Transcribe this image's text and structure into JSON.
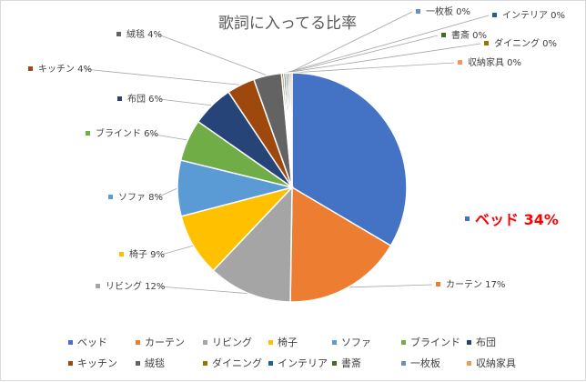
{
  "chart_data": {
    "type": "pie",
    "title": "歌詞に入ってる比率",
    "legend_position": "bottom",
    "slices": [
      {
        "name": "ベッド",
        "label": "ベッド 34%",
        "value": 34,
        "color": "#4472c4"
      },
      {
        "name": "カーテン",
        "label": "カーテン 17%",
        "value": 17,
        "color": "#ed7d31"
      },
      {
        "name": "リビング",
        "label": "リビング 12%",
        "value": 12,
        "color": "#a5a5a5"
      },
      {
        "name": "椅子",
        "label": "椅子 9%",
        "value": 9,
        "color": "#ffc000"
      },
      {
        "name": "ソファ",
        "label": "ソファ 8%",
        "value": 8,
        "color": "#5b9bd5"
      },
      {
        "name": "ブラインド",
        "label": "ブラインド 6%",
        "value": 6,
        "color": "#70ad47"
      },
      {
        "name": "布団",
        "label": "布団 6%",
        "value": 6,
        "color": "#264478"
      },
      {
        "name": "キッチン",
        "label": "キッチン 4%",
        "value": 4,
        "color": "#9e480e"
      },
      {
        "name": "絨毯",
        "label": "絨毯 4%",
        "value": 4,
        "color": "#636363"
      },
      {
        "name": "ダイニング",
        "label": "ダイニング 0%",
        "value": 0.3,
        "color": "#997300"
      },
      {
        "name": "インテリア",
        "label": "インテリア 0%",
        "value": 0.3,
        "color": "#255e91"
      },
      {
        "name": "書斎",
        "label": "書斎 0%",
        "value": 0.3,
        "color": "#43682b"
      },
      {
        "name": "一枚板",
        "label": "一枚板 0%",
        "value": 0.3,
        "color": "#698ed0"
      },
      {
        "name": "収納家具",
        "label": "収納家具 0%",
        "value": 0.3,
        "color": "#f1975a"
      }
    ]
  }
}
